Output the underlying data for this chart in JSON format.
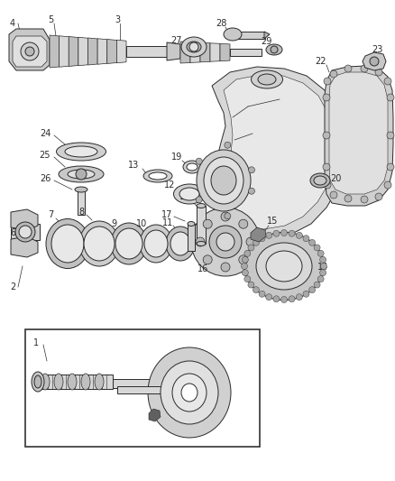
{
  "bg_color": "#ffffff",
  "fig_width": 4.38,
  "fig_height": 5.33,
  "dpi": 100,
  "line_color": "#2a2a2a",
  "fill_light": "#d8d8d8",
  "fill_mid": "#c0c0c0",
  "fill_dark": "#a8a8a8"
}
